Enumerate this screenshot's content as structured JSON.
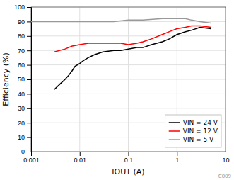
{
  "chart_data": {
    "type": "line",
    "xlabel": "IOUT (A)",
    "ylabel": "Efficiency (%)",
    "log": "x",
    "grid": true,
    "legend": "lower right",
    "xlim": [
      0.001,
      10
    ],
    "xticks": [
      0.001,
      0.01,
      0.1,
      1,
      10
    ],
    "ylim": [
      0,
      100
    ],
    "yticks": [
      0,
      10,
      20,
      30,
      40,
      50,
      60,
      70,
      80,
      90,
      100
    ],
    "annotations": [
      "C009"
    ],
    "series": [
      {
        "name": "VIN = 24 V",
        "color": "#000000",
        "x": [
          0.003,
          0.004,
          0.005,
          0.006,
          0.007,
          0.008,
          0.01,
          0.012,
          0.015,
          0.02,
          0.03,
          0.05,
          0.07,
          0.1,
          0.15,
          0.2,
          0.3,
          0.5,
          0.7,
          1.0,
          1.5,
          2.0,
          3.0,
          5.0
        ],
        "values": [
          43,
          47,
          50,
          53,
          56,
          59,
          61,
          63,
          65,
          67,
          69,
          70,
          70,
          71,
          72,
          72,
          74,
          76,
          78,
          81,
          83,
          84,
          86,
          85
        ]
      },
      {
        "name": "VIN = 12 V",
        "color": "#ff0000",
        "x": [
          0.003,
          0.005,
          0.007,
          0.01,
          0.015,
          0.02,
          0.03,
          0.05,
          0.07,
          0.1,
          0.15,
          0.2,
          0.3,
          0.5,
          0.7,
          1.0,
          1.5,
          2.0,
          3.0,
          5.0
        ],
        "values": [
          69,
          71,
          73,
          74,
          75,
          75,
          75,
          75,
          75,
          74,
          75,
          76,
          78,
          81,
          83,
          85,
          86,
          87,
          87,
          86
        ]
      },
      {
        "name": "VIN = 5 V",
        "color": "#999999",
        "x": [
          0.001,
          0.002,
          0.003,
          0.005,
          0.007,
          0.01,
          0.02,
          0.05,
          0.1,
          0.2,
          0.5,
          1.0,
          1.5,
          2.0,
          3.0,
          5.0
        ],
        "values": [
          90,
          90,
          90,
          90,
          90,
          90,
          90,
          90,
          91,
          91,
          92,
          92,
          92,
          91,
          90,
          89
        ]
      }
    ]
  }
}
